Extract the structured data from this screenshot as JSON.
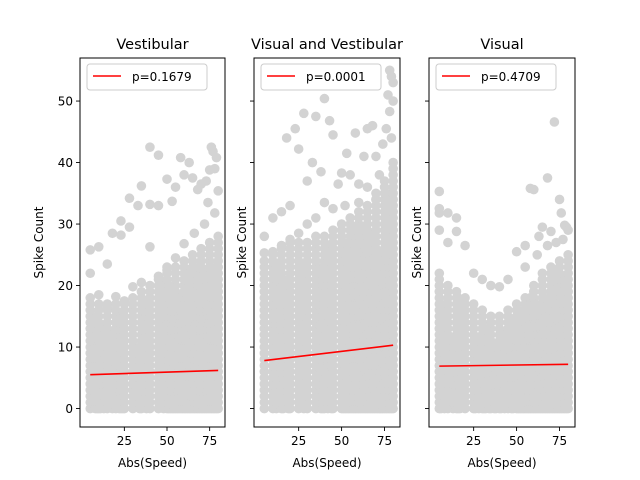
{
  "colors": {
    "points": "#d3d3d3",
    "fit_line": "#ff0000",
    "axes": "#000000"
  },
  "chart_data": [
    {
      "type": "scatter",
      "title": "Vestibular",
      "xlabel": "Abs(Speed)",
      "ylabel": "Spike Count",
      "xlim": [
        -1,
        84
      ],
      "ylim": [
        -3,
        57
      ],
      "xticks": [
        25,
        50,
        75
      ],
      "yticks": [
        0,
        10,
        20,
        30,
        40,
        50
      ],
      "show_y_ticklabels": true,
      "grid": false,
      "legend": {
        "placement": "upper-left",
        "entries": [
          {
            "label": "p=0.1679",
            "color": "#ff0000"
          }
        ]
      },
      "fit_line": {
        "x": [
          5,
          80
        ],
        "y": [
          5.5,
          6.2
        ]
      },
      "outliers": [
        [
          5,
          25.8
        ],
        [
          10,
          26.3
        ],
        [
          15,
          23.5
        ],
        [
          18,
          28.5
        ],
        [
          23,
          30.5
        ],
        [
          23,
          28.2
        ],
        [
          28,
          34.2
        ],
        [
          28,
          29.5
        ],
        [
          33,
          33.0
        ],
        [
          35,
          36.2
        ],
        [
          40,
          42.5
        ],
        [
          40,
          33.2
        ],
        [
          40,
          26.3
        ],
        [
          45,
          41.2
        ],
        [
          45,
          33.0
        ],
        [
          50,
          37.3
        ],
        [
          53,
          33.7
        ],
        [
          55,
          36.0
        ],
        [
          58,
          40.8
        ],
        [
          60,
          38.0
        ],
        [
          63,
          40.0
        ],
        [
          65,
          37.5
        ],
        [
          68,
          35.6
        ],
        [
          70,
          36.5
        ],
        [
          73,
          37.0
        ],
        [
          75,
          38.8
        ],
        [
          76,
          42.5
        ],
        [
          77,
          41.8
        ],
        [
          78,
          39.0
        ],
        [
          79,
          40.8
        ],
        [
          80,
          35.4
        ],
        [
          74,
          33.5
        ],
        [
          78,
          31.8
        ],
        [
          72,
          30.0
        ],
        [
          66,
          28.5
        ],
        [
          60,
          26.8
        ],
        [
          55,
          24.5
        ],
        [
          50,
          22.5
        ],
        [
          45,
          21.5
        ],
        [
          35,
          20.5
        ],
        [
          30,
          19.8
        ],
        [
          25,
          17.5
        ],
        [
          20,
          18.2
        ],
        [
          15,
          16.5
        ],
        [
          10,
          18.5
        ],
        [
          5,
          22.0
        ]
      ],
      "density": {
        "x_min": 5,
        "x_max": 80,
        "env_x": [
          5,
          20,
          35,
          50,
          65,
          80
        ],
        "env_y": [
          18,
          17,
          19,
          23,
          25,
          28
        ]
      }
    },
    {
      "type": "scatter",
      "title": "Visual and Vestibular",
      "xlabel": "Abs(Speed)",
      "ylabel": "Spike Count",
      "xlim": [
        -1,
        84
      ],
      "ylim": [
        -3,
        57
      ],
      "xticks": [
        25,
        50,
        75
      ],
      "yticks": [
        0,
        10,
        20,
        30,
        40,
        50
      ],
      "show_y_ticklabels": false,
      "grid": false,
      "legend": {
        "placement": "upper-left",
        "entries": [
          {
            "label": "p=0.0001",
            "color": "#ff0000"
          }
        ]
      },
      "fit_line": {
        "x": [
          5,
          80
        ],
        "y": [
          7.8,
          10.3
        ]
      },
      "outliers": [
        [
          5,
          28.0
        ],
        [
          10,
          31.0
        ],
        [
          15,
          32.0
        ],
        [
          18,
          44.0
        ],
        [
          20,
          33.0
        ],
        [
          23,
          45.5
        ],
        [
          25,
          42.2
        ],
        [
          28,
          48.0
        ],
        [
          30,
          37.0
        ],
        [
          33,
          40.0
        ],
        [
          35,
          47.5
        ],
        [
          38,
          38.5
        ],
        [
          40,
          50.4
        ],
        [
          43,
          46.8
        ],
        [
          45,
          44.5
        ],
        [
          48,
          36.5
        ],
        [
          50,
          38.3
        ],
        [
          53,
          41.5
        ],
        [
          55,
          38.0
        ],
        [
          58,
          44.8
        ],
        [
          60,
          36.5
        ],
        [
          63,
          41.0
        ],
        [
          65,
          45.5
        ],
        [
          68,
          46.0
        ],
        [
          70,
          41.0
        ],
        [
          72,
          38.0
        ],
        [
          74,
          43.0
        ],
        [
          76,
          45.5
        ],
        [
          77,
          51.0
        ],
        [
          78,
          48.3
        ],
        [
          79,
          54.0
        ],
        [
          80,
          53.0
        ],
        [
          78,
          55.0
        ],
        [
          80,
          50.0
        ],
        [
          79,
          44.0
        ],
        [
          75,
          35.0
        ],
        [
          70,
          34.0
        ],
        [
          65,
          36.0
        ],
        [
          60,
          33.5
        ],
        [
          52,
          33.0
        ],
        [
          45,
          32.5
        ],
        [
          40,
          33.5
        ],
        [
          35,
          31.0
        ],
        [
          30,
          30.0
        ],
        [
          25,
          28.5
        ],
        [
          20,
          27.5
        ],
        [
          15,
          26.5
        ],
        [
          10,
          25.5
        ],
        [
          5,
          25.3
        ]
      ],
      "density": {
        "x_min": 5,
        "x_max": 80,
        "env_x": [
          5,
          20,
          35,
          50,
          65,
          80
        ],
        "env_y": [
          24,
          27,
          28,
          30,
          33,
          40
        ]
      }
    },
    {
      "type": "scatter",
      "title": "Visual",
      "xlabel": "Abs(Speed)",
      "ylabel": "Spike Count",
      "xlim": [
        -1,
        84
      ],
      "ylim": [
        -3,
        57
      ],
      "xticks": [
        25,
        50,
        75
      ],
      "yticks": [
        0,
        10,
        20,
        30,
        40,
        50
      ],
      "show_y_ticklabels": false,
      "grid": false,
      "legend": {
        "placement": "upper-left",
        "entries": [
          {
            "label": "p=0.4709",
            "color": "#ff0000"
          }
        ]
      },
      "fit_line": {
        "x": [
          5,
          80
        ],
        "y": [
          6.9,
          7.2
        ]
      },
      "outliers": [
        [
          5,
          35.3
        ],
        [
          5,
          32.5
        ],
        [
          5,
          31.8
        ],
        [
          5,
          29.0
        ],
        [
          10,
          31.8
        ],
        [
          10,
          27.0
        ],
        [
          15,
          31.0
        ],
        [
          15,
          28.8
        ],
        [
          20,
          26.5
        ],
        [
          25,
          22.0
        ],
        [
          30,
          21.0
        ],
        [
          35,
          20.0
        ],
        [
          40,
          19.8
        ],
        [
          45,
          21.0
        ],
        [
          50,
          25.5
        ],
        [
          55,
          26.5
        ],
        [
          58,
          35.8
        ],
        [
          60,
          35.6
        ],
        [
          63,
          28.0
        ],
        [
          65,
          29.5
        ],
        [
          68,
          37.5
        ],
        [
          70,
          28.8
        ],
        [
          72,
          46.6
        ],
        [
          75,
          34.0
        ],
        [
          76,
          31.8
        ],
        [
          78,
          29.8
        ],
        [
          79,
          29.5
        ],
        [
          80,
          29.0
        ],
        [
          77,
          27.5
        ],
        [
          73,
          27.0
        ],
        [
          68,
          26.5
        ],
        [
          62,
          25.0
        ],
        [
          55,
          23.0
        ]
      ],
      "density": {
        "x_min": 5,
        "x_max": 80,
        "env_x": [
          5,
          20,
          35,
          50,
          65,
          80
        ],
        "env_y": [
          22,
          18,
          15,
          17,
          22,
          25
        ]
      }
    }
  ]
}
